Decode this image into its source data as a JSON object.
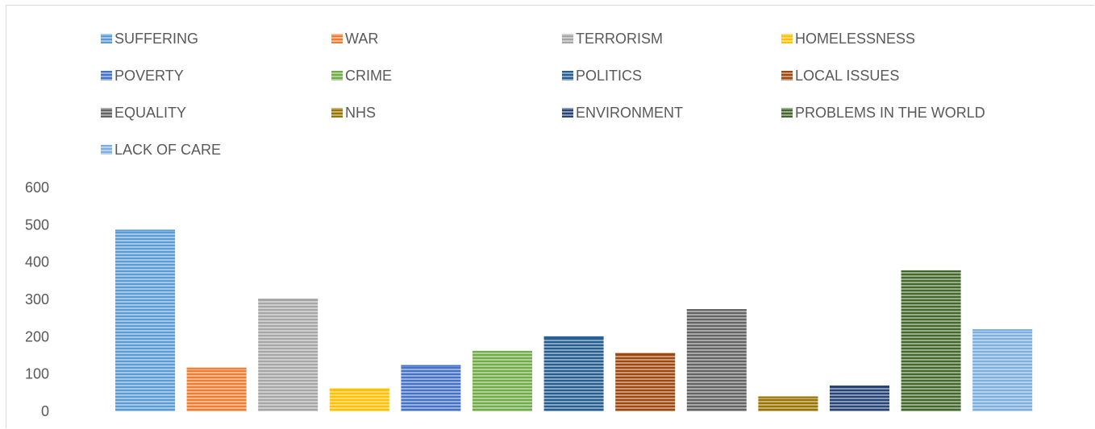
{
  "chart_data": {
    "type": "bar",
    "title": "",
    "xlabel": "",
    "ylabel": "",
    "ylim": [
      0,
      600
    ],
    "yticks": [
      "0",
      "100",
      "200",
      "300",
      "400",
      "500",
      "600"
    ],
    "grid": false,
    "legend_position": "top",
    "fill_style": "horizontal-striped",
    "categories": [
      "SUFFERING",
      "WAR",
      "TERRORISM",
      "HOMELESSNESS",
      "POVERTY",
      "CRIME",
      "POLITICS",
      "LOCAL ISSUES",
      "EQUALITY",
      "NHS",
      "ENVIRONMENT",
      "PROBLEMS IN THE WORLD",
      "LACK OF CARE"
    ],
    "values": [
      487,
      117,
      302,
      61,
      124,
      162,
      201,
      156,
      274,
      40,
      69,
      378,
      220
    ],
    "colors": [
      "#5b9bd5",
      "#ed7d31",
      "#a5a5a5",
      "#ffc000",
      "#4472c4",
      "#70ad47",
      "#255e91",
      "#9e480e",
      "#636363",
      "#997300",
      "#264478",
      "#43682b",
      "#7cafdd"
    ]
  }
}
